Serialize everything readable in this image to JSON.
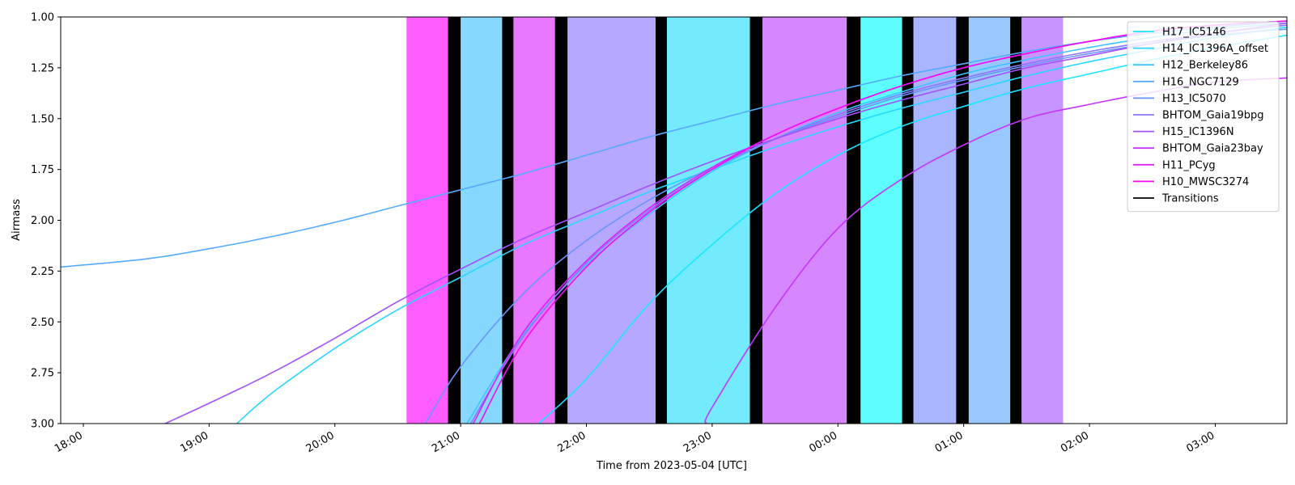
{
  "chart_data": {
    "type": "line",
    "xlabel": "Time from 2023-05-04 [UTC]",
    "ylabel": "Airmass",
    "x_range_hours": [
      17.82,
      27.57
    ],
    "ylim": [
      3.0,
      1.0
    ],
    "y_inverted": true,
    "yticks": [
      "1.00",
      "1.25",
      "1.50",
      "1.75",
      "2.00",
      "2.25",
      "2.50",
      "2.75",
      "3.00"
    ],
    "xticks": [
      {
        "h": 18,
        "label": "18:00"
      },
      {
        "h": 19,
        "label": "19:00"
      },
      {
        "h": 20,
        "label": "20:00"
      },
      {
        "h": 21,
        "label": "21:00"
      },
      {
        "h": 22,
        "label": "22:00"
      },
      {
        "h": 23,
        "label": "23:00"
      },
      {
        "h": 24,
        "label": "00:00"
      },
      {
        "h": 25,
        "label": "01:00"
      },
      {
        "h": 26,
        "label": "02:00"
      },
      {
        "h": 27,
        "label": "03:00"
      }
    ],
    "grid": false,
    "legend_position": "top-right",
    "bands": [
      {
        "x0": 20.57,
        "x1": 20.9,
        "color": "#ff5cff"
      },
      {
        "x0": 21.0,
        "x1": 21.33,
        "color": "#86d8ff"
      },
      {
        "x0": 21.42,
        "x1": 21.75,
        "color": "#ea77ff"
      },
      {
        "x0": 21.85,
        "x1": 22.55,
        "color": "#b7a8ff"
      },
      {
        "x0": 22.64,
        "x1": 23.3,
        "color": "#73ebfc"
      },
      {
        "x0": 23.4,
        "x1": 24.07,
        "color": "#d686ff"
      },
      {
        "x0": 24.18,
        "x1": 24.51,
        "color": "#5efefe"
      },
      {
        "x0": 24.6,
        "x1": 24.94,
        "color": "#a9b6ff"
      },
      {
        "x0": 25.04,
        "x1": 25.37,
        "color": "#98c8ff"
      },
      {
        "x0": 25.46,
        "x1": 25.79,
        "color": "#c695ff"
      }
    ],
    "transitions": [
      {
        "x0": 20.9,
        "x1": 21.0
      },
      {
        "x0": 21.33,
        "x1": 21.42
      },
      {
        "x0": 21.75,
        "x1": 21.85
      },
      {
        "x0": 22.55,
        "x1": 22.64
      },
      {
        "x0": 23.3,
        "x1": 23.4
      },
      {
        "x0": 24.07,
        "x1": 24.18
      },
      {
        "x0": 24.51,
        "x1": 24.6
      },
      {
        "x0": 24.94,
        "x1": 25.04
      },
      {
        "x0": 25.37,
        "x1": 25.46
      }
    ],
    "series": [
      {
        "name": "H17_IC5146",
        "color": "#18e7ff",
        "points": [
          [
            21.62,
            3.0
          ],
          [
            22.0,
            2.78
          ],
          [
            22.5,
            2.41
          ],
          [
            23.0,
            2.12
          ],
          [
            23.5,
            1.87
          ],
          [
            24.0,
            1.68
          ],
          [
            24.5,
            1.54
          ],
          [
            25.0,
            1.44
          ],
          [
            25.5,
            1.35
          ],
          [
            26.0,
            1.28
          ],
          [
            26.5,
            1.21
          ],
          [
            27.0,
            1.15
          ],
          [
            27.57,
            1.09
          ]
        ]
      },
      {
        "name": "H14_IC1396A_offset",
        "color": "#29d6ff",
        "points": [
          [
            19.22,
            3.0
          ],
          [
            19.5,
            2.85
          ],
          [
            20.0,
            2.63
          ],
          [
            20.5,
            2.44
          ],
          [
            21.0,
            2.28
          ],
          [
            21.5,
            2.12
          ],
          [
            22.0,
            1.99
          ],
          [
            22.5,
            1.86
          ],
          [
            23.0,
            1.75
          ],
          [
            23.5,
            1.64
          ],
          [
            24.0,
            1.54
          ],
          [
            24.5,
            1.45
          ],
          [
            25.0,
            1.37
          ],
          [
            25.5,
            1.29
          ],
          [
            26.0,
            1.22
          ],
          [
            26.5,
            1.16
          ],
          [
            27.0,
            1.1
          ],
          [
            27.57,
            1.05
          ]
        ]
      },
      {
        "name": "H12_Berkeley86",
        "color": "#3ec4ff",
        "points": [
          [
            21.05,
            3.0
          ],
          [
            21.5,
            2.56
          ],
          [
            22.0,
            2.22
          ],
          [
            22.5,
            1.97
          ],
          [
            23.0,
            1.76
          ],
          [
            23.5,
            1.6
          ],
          [
            24.0,
            1.47
          ],
          [
            24.5,
            1.37
          ],
          [
            25.0,
            1.28
          ],
          [
            25.5,
            1.21
          ],
          [
            26.0,
            1.15
          ],
          [
            26.5,
            1.1
          ],
          [
            27.0,
            1.06
          ],
          [
            27.57,
            1.03
          ]
        ]
      },
      {
        "name": "H16_NGC7129",
        "color": "#55aaff",
        "points": [
          [
            17.82,
            2.23
          ],
          [
            18.5,
            2.19
          ],
          [
            19.0,
            2.14
          ],
          [
            19.5,
            2.08
          ],
          [
            20.0,
            2.01
          ],
          [
            20.5,
            1.93
          ],
          [
            21.0,
            1.85
          ],
          [
            21.5,
            1.77
          ],
          [
            22.0,
            1.68
          ],
          [
            22.5,
            1.59
          ],
          [
            23.0,
            1.51
          ],
          [
            23.5,
            1.43
          ],
          [
            24.0,
            1.36
          ],
          [
            24.5,
            1.29
          ],
          [
            25.0,
            1.23
          ],
          [
            25.5,
            1.17
          ],
          [
            26.0,
            1.12
          ],
          [
            26.5,
            1.08
          ],
          [
            27.0,
            1.05
          ],
          [
            27.57,
            1.02
          ]
        ]
      },
      {
        "name": "H13_IC5070",
        "color": "#6b94ff",
        "points": [
          [
            20.72,
            3.0
          ],
          [
            21.0,
            2.72
          ],
          [
            21.5,
            2.36
          ],
          [
            22.0,
            2.1
          ],
          [
            22.5,
            1.9
          ],
          [
            23.0,
            1.74
          ],
          [
            23.5,
            1.6
          ],
          [
            24.0,
            1.49
          ],
          [
            24.5,
            1.39
          ],
          [
            25.0,
            1.31
          ],
          [
            25.5,
            1.24
          ],
          [
            26.0,
            1.18
          ],
          [
            26.5,
            1.13
          ],
          [
            27.0,
            1.09
          ],
          [
            27.57,
            1.06
          ]
        ]
      },
      {
        "name": "BHTOM_Gaia19bpg",
        "color": "#8b77ff",
        "points": [
          [
            21.08,
            3.0
          ],
          [
            21.5,
            2.57
          ],
          [
            22.0,
            2.21
          ],
          [
            22.5,
            1.95
          ],
          [
            23.0,
            1.75
          ],
          [
            23.5,
            1.6
          ],
          [
            24.0,
            1.48
          ],
          [
            24.5,
            1.38
          ],
          [
            25.0,
            1.3
          ],
          [
            25.5,
            1.23
          ],
          [
            26.0,
            1.17
          ],
          [
            26.5,
            1.12
          ],
          [
            27.0,
            1.08
          ],
          [
            27.57,
            1.04
          ]
        ]
      },
      {
        "name": "H15_IC1396N",
        "color": "#a151ff",
        "points": [
          [
            18.65,
            3.0
          ],
          [
            19.0,
            2.9
          ],
          [
            19.5,
            2.75
          ],
          [
            20.0,
            2.58
          ],
          [
            20.5,
            2.4
          ],
          [
            21.0,
            2.24
          ],
          [
            21.5,
            2.09
          ],
          [
            22.0,
            1.96
          ],
          [
            22.5,
            1.83
          ],
          [
            23.0,
            1.71
          ],
          [
            23.5,
            1.6
          ],
          [
            24.0,
            1.5
          ],
          [
            24.5,
            1.41
          ],
          [
            25.0,
            1.33
          ],
          [
            25.5,
            1.25
          ],
          [
            26.0,
            1.19
          ],
          [
            26.5,
            1.13
          ],
          [
            27.0,
            1.08
          ],
          [
            27.57,
            1.03
          ]
        ]
      },
      {
        "name": "BHTOM_Gaia23bay",
        "color": "#c634ff",
        "points": [
          [
            22.95,
            3.0
          ],
          [
            23.0,
            2.92
          ],
          [
            23.5,
            2.43
          ],
          [
            24.0,
            2.04
          ],
          [
            24.5,
            1.8
          ],
          [
            25.0,
            1.63
          ],
          [
            25.5,
            1.5
          ],
          [
            26.0,
            1.43
          ],
          [
            26.5,
            1.37
          ],
          [
            27.0,
            1.32
          ],
          [
            27.57,
            1.3
          ]
        ]
      },
      {
        "name": "H11_PCyg",
        "color": "#dc1fff",
        "points": [
          [
            21.1,
            3.0
          ],
          [
            21.5,
            2.55
          ],
          [
            22.0,
            2.2
          ],
          [
            22.5,
            1.94
          ],
          [
            23.0,
            1.74
          ],
          [
            23.5,
            1.58
          ],
          [
            24.0,
            1.45
          ],
          [
            24.5,
            1.34
          ],
          [
            25.0,
            1.25
          ],
          [
            25.5,
            1.18
          ],
          [
            26.0,
            1.12
          ],
          [
            26.5,
            1.07
          ],
          [
            27.0,
            1.04
          ],
          [
            27.57,
            1.02
          ]
        ]
      },
      {
        "name": "H10_MWSC3274",
        "color": "#f50af5",
        "points": [
          [
            21.15,
            3.0
          ],
          [
            21.5,
            2.6
          ],
          [
            22.0,
            2.23
          ],
          [
            22.5,
            1.96
          ],
          [
            23.0,
            1.75
          ],
          [
            23.5,
            1.58
          ],
          [
            24.0,
            1.45
          ],
          [
            24.5,
            1.34
          ],
          [
            25.0,
            1.25
          ],
          [
            25.5,
            1.18
          ],
          [
            26.0,
            1.12
          ],
          [
            26.5,
            1.07
          ],
          [
            27.0,
            1.04
          ],
          [
            27.57,
            1.02
          ]
        ]
      }
    ],
    "transitions_legend": {
      "name": "Transitions",
      "color": "#000000"
    }
  }
}
